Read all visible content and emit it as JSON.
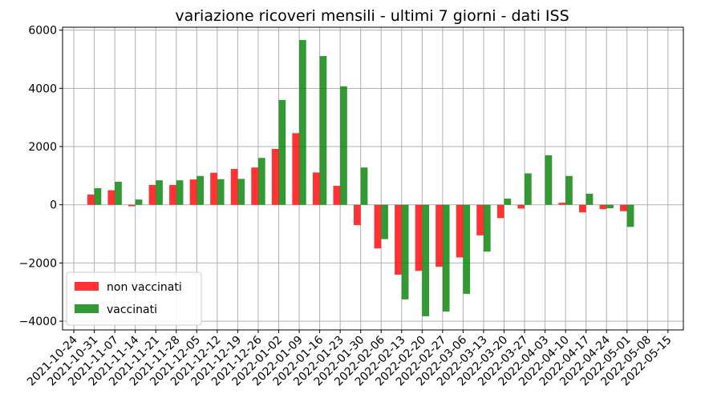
{
  "chart_data": {
    "type": "bar",
    "title": "variazione ricoveri mensili - ultimi 7 giorni - dati ISS",
    "xlabel": "",
    "ylabel": "",
    "ylim": [
      -4300,
      6100
    ],
    "yticks": [
      -4000,
      -2000,
      0,
      2000,
      4000,
      6000
    ],
    "grid": true,
    "legend_position": "lower-left",
    "categories": [
      "2021-10-24",
      "2021-10-31",
      "2021-11-07",
      "2021-11-14",
      "2021-11-21",
      "2021-11-28",
      "2021-12-05",
      "2021-12-12",
      "2021-12-19",
      "2021-12-26",
      "2022-01-02",
      "2022-01-09",
      "2022-01-16",
      "2022-01-23",
      "2022-01-30",
      "2022-02-06",
      "2022-02-13",
      "2022-02-20",
      "2022-02-27",
      "2022-03-06",
      "2022-03-13",
      "2022-03-20",
      "2022-03-27",
      "2022-04-03",
      "2022-04-10",
      "2022-04-17",
      "2022-04-24",
      "2022-05-01",
      "2022-05-08",
      "2022-05-15"
    ],
    "series": [
      {
        "name": "non vaccinati",
        "color": "#ff0000",
        "values": [
          null,
          350,
          500,
          -50,
          680,
          680,
          870,
          1100,
          1230,
          1280,
          1920,
          2460,
          1110,
          650,
          -700,
          -1500,
          -2400,
          -2270,
          -2130,
          -1810,
          -1050,
          -460,
          -130,
          0,
          70,
          -260,
          -150,
          -220,
          null,
          null
        ]
      },
      {
        "name": "vaccinati",
        "color": "#008000",
        "values": [
          null,
          570,
          790,
          180,
          840,
          840,
          990,
          880,
          890,
          1610,
          3600,
          5660,
          5110,
          4070,
          1280,
          -1180,
          -3250,
          -3830,
          -3670,
          -3060,
          -1610,
          210,
          1080,
          1700,
          990,
          380,
          -120,
          -760,
          null,
          null
        ]
      }
    ]
  }
}
